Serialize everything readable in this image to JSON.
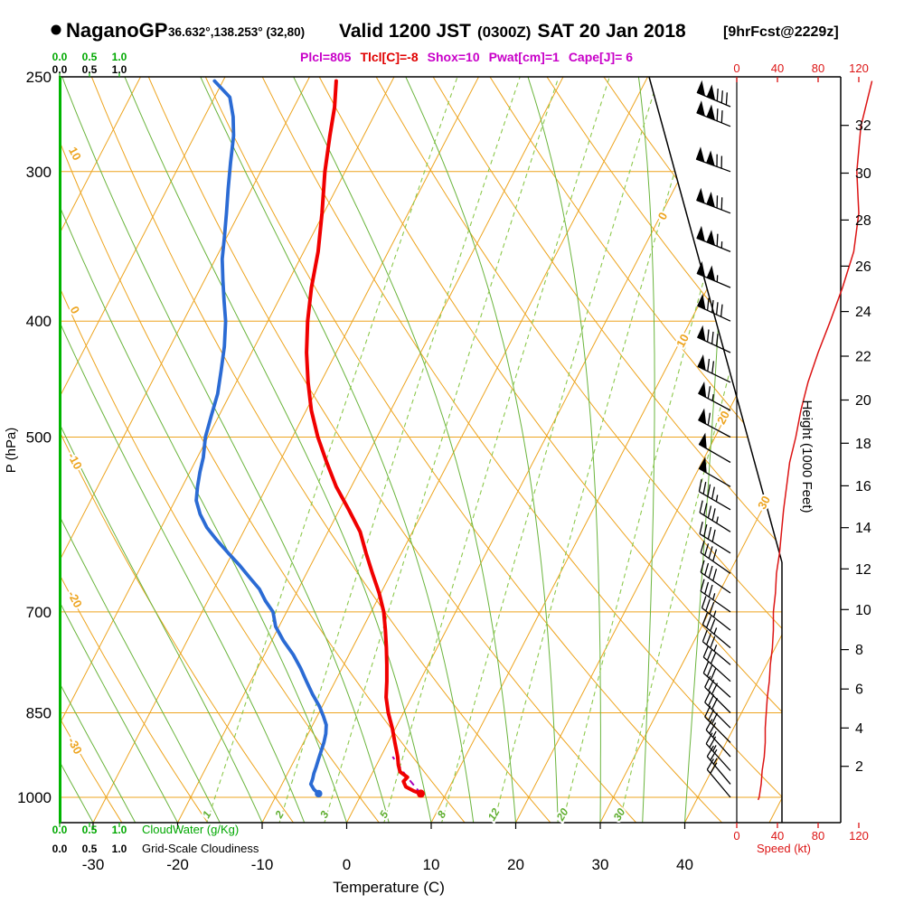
{
  "header": {
    "station": "NaganoGP",
    "coords": "36.632°,138.253° (32,80)",
    "valid_prefix": "Valid 1200 JST",
    "zulu": "(0300Z)",
    "date": "SAT 20 Jan 2018",
    "fcst": "[9hrFcst@2229z]",
    "indices": {
      "plcl": "Plcl=805",
      "tlcl": "Tlcl[C]=-8",
      "shox": "Shox=10",
      "pwat": "Pwat[cm]=1",
      "cape": "Cape[J]= 6"
    }
  },
  "axes": {
    "pressure": {
      "title": "P (hPa)",
      "ticks": [
        250,
        300,
        400,
        500,
        700,
        850,
        1000
      ]
    },
    "temperature": {
      "title": "Temperature (C)",
      "ticks": [
        -30,
        -20,
        -10,
        0,
        10,
        20,
        30,
        40
      ]
    },
    "height": {
      "title": "Height (1000 Feet)",
      "ticks": [
        2,
        4,
        6,
        8,
        10,
        12,
        14,
        16,
        18,
        20,
        22,
        24,
        26,
        28,
        30,
        32
      ]
    },
    "speed": {
      "title": "Speed (kt)",
      "ticks": [
        0,
        40,
        80,
        120
      ]
    },
    "cloudwater": {
      "title": "CloudWater (g/Kg)",
      "ticks": [
        "0.0",
        "0.5",
        "1.0"
      ]
    },
    "cloudiness": {
      "title": "Grid-Scale Cloudiness",
      "ticks": [
        "0.0",
        "0.5",
        "1.0"
      ]
    }
  },
  "iso_labels": {
    "isotherm_right_C": [
      0,
      10,
      20,
      30
    ],
    "dry_adiabat_left_C": [
      10,
      0,
      -10,
      -20,
      -30
    ],
    "mixing_bottom_gkg": [
      1,
      2,
      3,
      5,
      8,
      12,
      20,
      30
    ]
  },
  "colors": {
    "isolines_orange": "#eda41f",
    "moist_green": "#6ab43c",
    "mixing_green": "#8cc84b",
    "temperature_red": "#f00000",
    "dewpoint_blue": "#2b6bd4",
    "parcel_magenta": "#a800b8",
    "speed_red": "#dc1414",
    "axis_green": "#00b400",
    "indices_magenta": "#c800c8"
  },
  "chart_data": {
    "type": "skewt_log_p_sounding",
    "pressure_range_hPa": [
      250,
      1050
    ],
    "temp_axis_range_C": [
      -35,
      45
    ],
    "mixing_ratio_lines_gkg": [
      1,
      2,
      3,
      5,
      8,
      12,
      20,
      30
    ],
    "temperature_C": [
      [
        993,
        7.0
      ],
      [
        988,
        6.0
      ],
      [
        980,
        4.8
      ],
      [
        970,
        4.2
      ],
      [
        962,
        4.4
      ],
      [
        952,
        3.2
      ],
      [
        940,
        2.6
      ],
      [
        925,
        2.0
      ],
      [
        900,
        0.8
      ],
      [
        875,
        -0.4
      ],
      [
        850,
        -1.8
      ],
      [
        825,
        -3.0
      ],
      [
        800,
        -3.9
      ],
      [
        775,
        -4.9
      ],
      [
        750,
        -6.0
      ],
      [
        725,
        -7.2
      ],
      [
        700,
        -8.5
      ],
      [
        675,
        -10.2
      ],
      [
        650,
        -12.2
      ],
      [
        625,
        -14.2
      ],
      [
        600,
        -16.2
      ],
      [
        575,
        -18.9
      ],
      [
        550,
        -21.8
      ],
      [
        525,
        -24.4
      ],
      [
        500,
        -27.0
      ],
      [
        475,
        -29.4
      ],
      [
        450,
        -31.5
      ],
      [
        425,
        -33.5
      ],
      [
        400,
        -35.3
      ],
      [
        375,
        -36.9
      ],
      [
        350,
        -38.3
      ],
      [
        325,
        -40.2
      ],
      [
        300,
        -42.4
      ],
      [
        280,
        -44.0
      ],
      [
        265,
        -45.2
      ],
      [
        252,
        -46.6
      ]
    ],
    "dewpoint_C": [
      [
        993,
        -5.1
      ],
      [
        985,
        -5.9
      ],
      [
        975,
        -6.6
      ],
      [
        965,
        -6.7
      ],
      [
        955,
        -6.9
      ],
      [
        945,
        -7.0
      ],
      [
        930,
        -7.2
      ],
      [
        915,
        -7.4
      ],
      [
        900,
        -7.6
      ],
      [
        885,
        -7.9
      ],
      [
        870,
        -8.4
      ],
      [
        855,
        -9.3
      ],
      [
        840,
        -10.3
      ],
      [
        820,
        -11.9
      ],
      [
        800,
        -13.4
      ],
      [
        780,
        -14.9
      ],
      [
        760,
        -16.6
      ],
      [
        740,
        -18.6
      ],
      [
        720,
        -20.4
      ],
      [
        700,
        -21.6
      ],
      [
        685,
        -23.2
      ],
      [
        670,
        -24.6
      ],
      [
        655,
        -26.5
      ],
      [
        640,
        -28.4
      ],
      [
        625,
        -30.5
      ],
      [
        610,
        -32.6
      ],
      [
        595,
        -34.6
      ],
      [
        580,
        -36.2
      ],
      [
        565,
        -37.5
      ],
      [
        550,
        -38.2
      ],
      [
        535,
        -38.8
      ],
      [
        520,
        -39.3
      ],
      [
        500,
        -40.3
      ],
      [
        480,
        -40.9
      ],
      [
        460,
        -41.5
      ],
      [
        440,
        -42.5
      ],
      [
        420,
        -43.6
      ],
      [
        400,
        -45.0
      ],
      [
        385,
        -46.4
      ],
      [
        370,
        -47.8
      ],
      [
        355,
        -49.2
      ],
      [
        340,
        -50.3
      ],
      [
        325,
        -51.5
      ],
      [
        310,
        -52.8
      ],
      [
        295,
        -54.1
      ],
      [
        280,
        -55.4
      ],
      [
        270,
        -56.6
      ],
      [
        260,
        -58.2
      ],
      [
        252,
        -61.0
      ]
    ],
    "parcel_path_C": [
      [
        993,
        7.0
      ],
      [
        960,
        4.2
      ],
      [
        925,
        1.4
      ]
    ],
    "wind_barb_format": "[pressure_hPa, direction_deg_from, speed_kt]",
    "wind_barbs": [
      [
        1000,
        320,
        20
      ],
      [
        975,
        320,
        25
      ],
      [
        950,
        318,
        25
      ],
      [
        925,
        318,
        25
      ],
      [
        900,
        315,
        30
      ],
      [
        875,
        315,
        30
      ],
      [
        850,
        315,
        30
      ],
      [
        825,
        312,
        30
      ],
      [
        800,
        312,
        30
      ],
      [
        775,
        310,
        35
      ],
      [
        750,
        310,
        35
      ],
      [
        725,
        308,
        35
      ],
      [
        700,
        305,
        35
      ],
      [
        675,
        305,
        40
      ],
      [
        650,
        305,
        40
      ],
      [
        625,
        302,
        40
      ],
      [
        600,
        302,
        45
      ],
      [
        575,
        300,
        45
      ],
      [
        550,
        300,
        50
      ],
      [
        525,
        300,
        50
      ],
      [
        500,
        298,
        60
      ],
      [
        475,
        298,
        65
      ],
      [
        450,
        296,
        70
      ],
      [
        425,
        295,
        80
      ],
      [
        400,
        295,
        90
      ],
      [
        375,
        293,
        105
      ],
      [
        350,
        292,
        115
      ],
      [
        325,
        291,
        120
      ],
      [
        300,
        290,
        120
      ],
      [
        275,
        292,
        120
      ],
      [
        250,
        293,
        130
      ]
    ],
    "wind_speed_profile_kt": [
      [
        1005,
        21
      ],
      [
        1000,
        22
      ],
      [
        975,
        24
      ],
      [
        950,
        25
      ],
      [
        925,
        27
      ],
      [
        900,
        28
      ],
      [
        875,
        28
      ],
      [
        850,
        29
      ],
      [
        825,
        30
      ],
      [
        800,
        32
      ],
      [
        775,
        33
      ],
      [
        750,
        35
      ],
      [
        725,
        36
      ],
      [
        700,
        36
      ],
      [
        675,
        38
      ],
      [
        650,
        39
      ],
      [
        625,
        42
      ],
      [
        600,
        44
      ],
      [
        575,
        46
      ],
      [
        550,
        49
      ],
      [
        525,
        52
      ],
      [
        500,
        58
      ],
      [
        475,
        63
      ],
      [
        450,
        70
      ],
      [
        425,
        80
      ],
      [
        400,
        92
      ],
      [
        375,
        104
      ],
      [
        350,
        115
      ],
      [
        325,
        120
      ],
      [
        300,
        118
      ],
      [
        275,
        122
      ],
      [
        252,
        133
      ]
    ]
  }
}
